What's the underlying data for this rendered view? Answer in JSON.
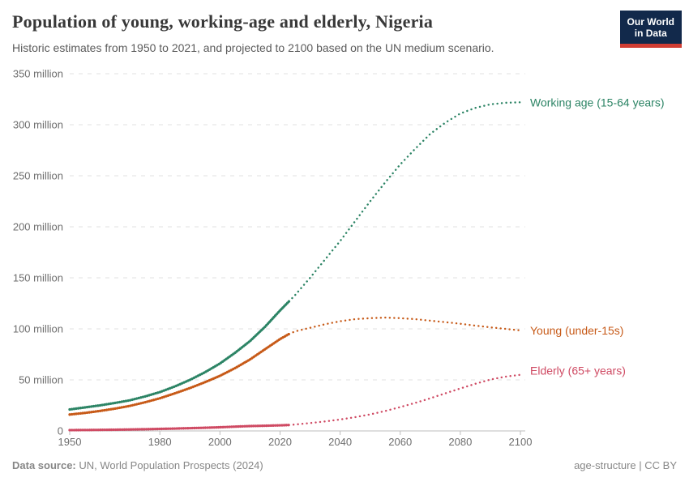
{
  "header": {
    "title": "Population of young, working-age and elderly, Nigeria",
    "subtitle": "Historic estimates from 1950 to 2021, and projected to 2100 based on the UN medium scenario."
  },
  "logo": {
    "line1": "Our World",
    "line2": "in Data",
    "bg_color": "#12294b",
    "accent_color": "#d13d33"
  },
  "footer": {
    "source_label": "Data source:",
    "source_value": " UN, World Population Prospects (2024)",
    "right_note": "age-structure",
    "right_sep": " | ",
    "right_license": "CC BY"
  },
  "chart_data": {
    "type": "line",
    "title": "Population of young, working-age and elderly, Nigeria",
    "xlabel": "",
    "ylabel": "",
    "xlim": [
      1950,
      2100
    ],
    "ylim": [
      0,
      350
    ],
    "x_ticks": [
      1950,
      1980,
      2000,
      2020,
      2040,
      2060,
      2080,
      2100
    ],
    "y_ticks": [
      0,
      50,
      100,
      150,
      200,
      250,
      300,
      350
    ],
    "y_tick_suffix": " million",
    "grid": "horizontal-dashed",
    "legend_position": "end-labels-right",
    "projection_from": 2023,
    "colors": {
      "grid": "#e0e0e0",
      "axis": "#bdbdbd",
      "tick_label": "#6e6e6e"
    },
    "series": [
      {
        "name": "Working age (15-64 years)",
        "color": "#2c8465",
        "label_dy": 1,
        "points": [
          [
            1950,
            21
          ],
          [
            1955,
            23
          ],
          [
            1960,
            25
          ],
          [
            1965,
            27.4
          ],
          [
            1970,
            30
          ],
          [
            1975,
            33.7
          ],
          [
            1980,
            38
          ],
          [
            1985,
            43.6
          ],
          [
            1990,
            50
          ],
          [
            1995,
            57.5
          ],
          [
            2000,
            66
          ],
          [
            2005,
            76.5
          ],
          [
            2010,
            88
          ],
          [
            2015,
            102
          ],
          [
            2020,
            118
          ],
          [
            2023,
            127
          ],
          [
            2025,
            133
          ],
          [
            2030,
            150
          ],
          [
            2035,
            168
          ],
          [
            2040,
            186
          ],
          [
            2045,
            205.5
          ],
          [
            2050,
            225
          ],
          [
            2055,
            243.5
          ],
          [
            2060,
            261
          ],
          [
            2065,
            276.5
          ],
          [
            2070,
            291
          ],
          [
            2075,
            302
          ],
          [
            2080,
            311
          ],
          [
            2085,
            316.5
          ],
          [
            2090,
            320
          ],
          [
            2095,
            321.5
          ],
          [
            2100,
            322
          ]
        ]
      },
      {
        "name": "Young (under-15s)",
        "color": "#c75a18",
        "label_dy": 1,
        "points": [
          [
            1950,
            16
          ],
          [
            1955,
            17.6
          ],
          [
            1960,
            19.5
          ],
          [
            1965,
            21.8
          ],
          [
            1970,
            24.5
          ],
          [
            1975,
            28
          ],
          [
            1980,
            32
          ],
          [
            1985,
            36.8
          ],
          [
            1990,
            42
          ],
          [
            1995,
            47.7
          ],
          [
            2000,
            54
          ],
          [
            2005,
            61.5
          ],
          [
            2010,
            70
          ],
          [
            2015,
            80
          ],
          [
            2020,
            90
          ],
          [
            2023,
            95
          ],
          [
            2025,
            97.5
          ],
          [
            2030,
            101
          ],
          [
            2035,
            104.5
          ],
          [
            2040,
            107.5
          ],
          [
            2045,
            109.5
          ],
          [
            2050,
            110.5
          ],
          [
            2055,
            111
          ],
          [
            2060,
            110.5
          ],
          [
            2065,
            109.5
          ],
          [
            2070,
            108
          ],
          [
            2075,
            106.6
          ],
          [
            2080,
            105
          ],
          [
            2085,
            103.2
          ],
          [
            2090,
            101.5
          ],
          [
            2095,
            100
          ],
          [
            2100,
            98.5
          ]
        ]
      },
      {
        "name": "Elderly (65+ years)",
        "color": "#cf4a63",
        "label_dy": -4,
        "points": [
          [
            1950,
            0.8
          ],
          [
            1955,
            0.9
          ],
          [
            1960,
            1.0
          ],
          [
            1965,
            1.2
          ],
          [
            1970,
            1.4
          ],
          [
            1975,
            1.7
          ],
          [
            1980,
            2.0
          ],
          [
            1985,
            2.3
          ],
          [
            1990,
            2.7
          ],
          [
            1995,
            3.1
          ],
          [
            2000,
            3.6
          ],
          [
            2005,
            4.2
          ],
          [
            2010,
            4.8
          ],
          [
            2015,
            5.1
          ],
          [
            2020,
            5.5
          ],
          [
            2023,
            5.8
          ],
          [
            2025,
            6.3
          ],
          [
            2030,
            7.7
          ],
          [
            2035,
            9.3
          ],
          [
            2040,
            11.2
          ],
          [
            2045,
            13.5
          ],
          [
            2050,
            16.2
          ],
          [
            2055,
            19.5
          ],
          [
            2060,
            23.3
          ],
          [
            2065,
            27.5
          ],
          [
            2070,
            32
          ],
          [
            2075,
            36.8
          ],
          [
            2080,
            41.6
          ],
          [
            2085,
            46.2
          ],
          [
            2090,
            50.3
          ],
          [
            2095,
            53.2
          ],
          [
            2100,
            55
          ]
        ]
      }
    ]
  }
}
